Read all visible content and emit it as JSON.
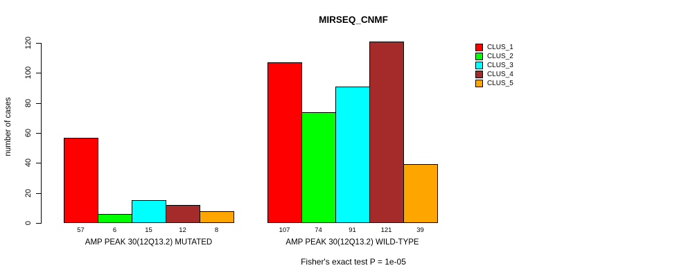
{
  "title": "MIRSEQ_CNMF",
  "footer": "Fisher's exact test P = 1e-05",
  "y_axis": {
    "label": "number of cases",
    "ticks": [
      0,
      20,
      40,
      60,
      80,
      100,
      120
    ]
  },
  "legend": {
    "items": [
      {
        "label": "CLUS_1",
        "color": "#FF0000"
      },
      {
        "label": "CLUS_2",
        "color": "#00FF00"
      },
      {
        "label": "CLUS_3",
        "color": "#00FFFF"
      },
      {
        "label": "CLUS_4",
        "color": "#A52A2A"
      },
      {
        "label": "CLUS_5",
        "color": "#FFA500"
      }
    ]
  },
  "chart_data": {
    "type": "bar",
    "title": "MIRSEQ_CNMF",
    "xlabel": "",
    "ylabel": "number of cases",
    "ylim": [
      0,
      120
    ],
    "grid": false,
    "legend_position": "right",
    "categories": [
      "AMP PEAK 30(12Q13.2) MUTATED",
      "AMP PEAK 30(12Q13.2) WILD-TYPE"
    ],
    "series": [
      {
        "name": "CLUS_1",
        "color": "#FF0000",
        "values": [
          57,
          107
        ]
      },
      {
        "name": "CLUS_2",
        "color": "#00FF00",
        "values": [
          6,
          74
        ]
      },
      {
        "name": "CLUS_3",
        "color": "#00FFFF",
        "values": [
          15,
          91
        ]
      },
      {
        "name": "CLUS_4",
        "color": "#A52A2A",
        "values": [
          12,
          121
        ]
      },
      {
        "name": "CLUS_5",
        "color": "#FFA500",
        "values": [
          8,
          39
        ]
      }
    ],
    "annotation": "Fisher's exact test P = 1e-05"
  }
}
